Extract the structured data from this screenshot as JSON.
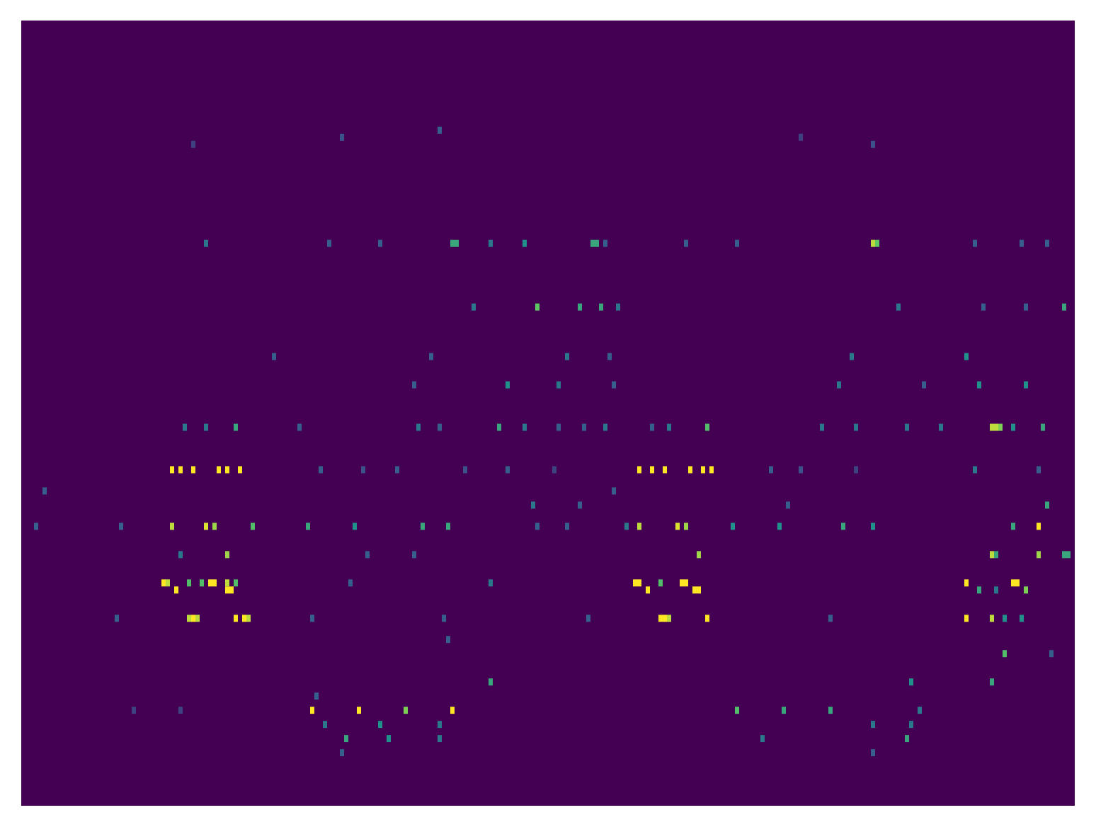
{
  "chart_data": {
    "type": "heatmap",
    "xlim": [
      0,
      248
    ],
    "ylim": [
      0,
      111
    ],
    "tick_labels": false,
    "clim": [
      0,
      1
    ],
    "colors": [
      "#440154",
      "#3b528b",
      "#21918c",
      "#5ec962",
      "#fde725"
    ],
    "cells": [
      [
        35,
        63,
        1
      ],
      [
        37,
        63,
        1
      ],
      [
        40,
        63,
        1
      ],
      [
        46,
        63,
        1
      ],
      [
        48,
        63,
        1
      ],
      [
        51,
        63,
        1
      ],
      [
        145,
        63,
        1
      ],
      [
        148,
        63,
        1
      ],
      [
        151,
        63,
        1
      ],
      [
        157,
        63,
        1
      ],
      [
        160,
        63,
        1
      ],
      [
        162,
        63,
        1
      ],
      [
        70,
        63,
        0.3
      ],
      [
        80,
        63,
        0.25
      ],
      [
        88,
        63,
        0.3
      ],
      [
        104,
        63,
        0.25
      ],
      [
        114,
        63,
        0.3
      ],
      [
        125,
        63,
        0.2
      ],
      [
        176,
        63,
        0.3
      ],
      [
        183,
        63,
        0.25
      ],
      [
        196,
        63,
        0.2
      ],
      [
        224,
        63,
        0.4
      ],
      [
        239,
        63,
        0.3
      ],
      [
        35,
        71,
        0.9
      ],
      [
        43,
        71,
        0.95
      ],
      [
        45,
        71,
        0.85
      ],
      [
        54,
        71,
        0.7
      ],
      [
        67,
        71,
        0.6
      ],
      [
        78,
        71,
        0.5
      ],
      [
        94,
        71,
        0.6
      ],
      [
        100,
        71,
        0.6
      ],
      [
        145,
        71,
        0.9
      ],
      [
        154,
        71,
        0.95
      ],
      [
        156,
        71,
        0.85
      ],
      [
        167,
        71,
        0.5
      ],
      [
        178,
        71,
        0.5
      ],
      [
        193,
        71,
        0.6
      ],
      [
        200,
        71,
        0.5
      ],
      [
        233,
        71,
        0.6
      ],
      [
        239,
        71,
        1
      ],
      [
        121,
        71,
        0.3
      ],
      [
        128,
        71,
        0.3
      ],
      [
        142,
        71,
        0.4
      ],
      [
        3,
        71,
        0.3
      ],
      [
        23,
        71,
        0.3
      ],
      [
        48,
        75,
        0.85
      ],
      [
        159,
        75,
        0.85
      ],
      [
        228,
        75,
        0.9
      ],
      [
        229,
        75,
        0.6
      ],
      [
        239,
        75,
        0.85
      ],
      [
        245,
        75,
        0.6
      ],
      [
        246,
        75,
        0.6
      ],
      [
        37,
        75,
        0.4
      ],
      [
        81,
        75,
        0.3
      ],
      [
        92,
        75,
        0.3
      ],
      [
        33,
        79,
        1
      ],
      [
        34,
        79,
        0.9
      ],
      [
        39,
        79,
        0.7
      ],
      [
        42,
        79,
        0.7
      ],
      [
        44,
        79,
        1
      ],
      [
        45,
        79,
        1
      ],
      [
        48,
        79,
        0.9
      ],
      [
        50,
        79,
        0.7
      ],
      [
        144,
        79,
        1
      ],
      [
        145,
        79,
        1
      ],
      [
        150,
        79,
        0.7
      ],
      [
        155,
        79,
        1
      ],
      [
        156,
        79,
        1
      ],
      [
        222,
        79,
        1
      ],
      [
        233,
        79,
        1
      ],
      [
        234,
        79,
        1
      ],
      [
        77,
        79,
        0.3
      ],
      [
        110,
        79,
        0.4
      ],
      [
        36,
        80,
        1
      ],
      [
        48,
        80,
        1
      ],
      [
        49,
        80,
        1
      ],
      [
        147,
        80,
        1
      ],
      [
        158,
        80,
        1
      ],
      [
        159,
        80,
        1
      ],
      [
        225,
        80,
        0.6
      ],
      [
        236,
        80,
        0.8
      ],
      [
        229,
        80,
        0.4
      ],
      [
        39,
        84,
        0.9
      ],
      [
        40,
        84,
        1
      ],
      [
        41,
        84,
        0.9
      ],
      [
        50,
        84,
        1
      ],
      [
        52,
        84,
        1
      ],
      [
        53,
        84,
        0.9
      ],
      [
        150,
        84,
        1
      ],
      [
        151,
        84,
        1
      ],
      [
        152,
        84,
        0.9
      ],
      [
        161,
        84,
        1
      ],
      [
        222,
        84,
        1
      ],
      [
        228,
        84,
        0.9
      ],
      [
        231,
        84,
        0.5
      ],
      [
        235,
        84,
        0.5
      ],
      [
        22,
        84,
        0.3
      ],
      [
        68,
        84,
        0.3
      ],
      [
        99,
        84,
        0.3
      ],
      [
        133,
        84,
        0.3
      ],
      [
        190,
        84,
        0.3
      ],
      [
        68,
        97,
        1
      ],
      [
        79,
        97,
        1
      ],
      [
        90,
        97,
        0.8
      ],
      [
        101,
        97,
        1
      ],
      [
        168,
        97,
        0.7
      ],
      [
        179,
        97,
        0.6
      ],
      [
        190,
        97,
        0.6
      ],
      [
        211,
        97,
        0.4
      ],
      [
        26,
        97,
        0.2
      ],
      [
        37,
        97,
        0.2
      ],
      [
        101,
        31,
        0.6
      ],
      [
        102,
        31,
        0.6
      ],
      [
        118,
        31,
        0.5
      ],
      [
        134,
        31,
        0.6
      ],
      [
        135,
        31,
        0.6
      ],
      [
        200,
        31,
        0.9
      ],
      [
        201,
        31,
        0.75
      ],
      [
        43,
        31,
        0.4
      ],
      [
        72,
        31,
        0.3
      ],
      [
        84,
        31,
        0.3
      ],
      [
        110,
        31,
        0.4
      ],
      [
        137,
        31,
        0.3
      ],
      [
        156,
        31,
        0.3
      ],
      [
        168,
        31,
        0.3
      ],
      [
        224,
        31,
        0.3
      ],
      [
        235,
        31,
        0.3
      ],
      [
        241,
        31,
        0.3
      ],
      [
        121,
        40,
        0.75
      ],
      [
        131,
        40,
        0.6
      ],
      [
        136,
        40,
        0.6
      ],
      [
        140,
        40,
        0.4
      ],
      [
        245,
        40,
        0.6
      ],
      [
        106,
        40,
        0.4
      ],
      [
        206,
        40,
        0.4
      ],
      [
        226,
        40,
        0.3
      ],
      [
        236,
        40,
        0.3
      ],
      [
        50,
        57,
        0.6
      ],
      [
        112,
        57,
        0.6
      ],
      [
        161,
        57,
        0.7
      ],
      [
        228,
        57,
        0.9
      ],
      [
        229,
        57,
        0.9
      ],
      [
        230,
        57,
        0.8
      ],
      [
        233,
        57,
        0.5
      ],
      [
        240,
        57,
        0.6
      ],
      [
        38,
        57,
        0.4
      ],
      [
        43,
        57,
        0.4
      ],
      [
        65,
        57,
        0.3
      ],
      [
        93,
        57,
        0.4
      ],
      [
        98,
        57,
        0.3
      ],
      [
        118,
        57,
        0.4
      ],
      [
        126,
        57,
        0.3
      ],
      [
        132,
        57,
        0.3
      ],
      [
        137,
        57,
        0.4
      ],
      [
        148,
        57,
        0.3
      ],
      [
        152,
        57,
        0.4
      ],
      [
        188,
        57,
        0.4
      ],
      [
        196,
        57,
        0.4
      ],
      [
        208,
        57,
        0.4
      ],
      [
        216,
        57,
        0.4
      ],
      [
        114,
        51,
        0.5
      ],
      [
        126,
        51,
        0.4
      ],
      [
        192,
        51,
        0.4
      ],
      [
        92,
        51,
        0.3
      ],
      [
        139,
        51,
        0.3
      ],
      [
        212,
        51,
        0.3
      ],
      [
        225,
        51,
        0.5
      ],
      [
        236,
        51,
        0.5
      ],
      [
        128,
        47,
        0.4
      ],
      [
        138,
        47,
        0.3
      ],
      [
        222,
        47,
        0.5
      ],
      [
        59,
        47,
        0.3
      ],
      [
        96,
        47,
        0.3
      ],
      [
        195,
        47,
        0.4
      ],
      [
        231,
        89,
        0.7
      ],
      [
        242,
        89,
        0.3
      ],
      [
        228,
        93,
        0.6
      ],
      [
        110,
        93,
        0.6
      ],
      [
        209,
        93,
        0.5
      ],
      [
        76,
        101,
        0.6
      ],
      [
        86,
        101,
        0.5
      ],
      [
        208,
        101,
        0.6
      ],
      [
        98,
        101,
        0.4
      ],
      [
        174,
        101,
        0.4
      ],
      [
        84,
        99,
        0.5
      ],
      [
        98,
        99,
        0.4
      ],
      [
        71,
        99,
        0.4
      ],
      [
        200,
        99,
        0.4
      ],
      [
        209,
        99,
        0.4
      ],
      [
        120,
        68,
        0.4
      ],
      [
        131,
        68,
        0.3
      ],
      [
        241,
        68,
        0.6
      ],
      [
        180,
        68,
        0.3
      ],
      [
        139,
        66,
        0.3
      ],
      [
        5,
        66,
        0.3
      ],
      [
        69,
        95,
        0.3
      ],
      [
        100,
        87,
        0.3
      ],
      [
        75,
        103,
        0.3
      ],
      [
        200,
        103,
        0.3
      ],
      [
        40,
        17,
        0.2
      ],
      [
        75,
        16,
        0.25
      ],
      [
        98,
        15,
        0.3
      ],
      [
        183,
        16,
        0.2
      ],
      [
        200,
        17,
        0.25
      ]
    ]
  }
}
